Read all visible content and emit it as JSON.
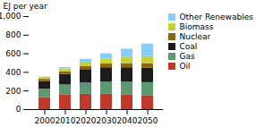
{
  "chart_data": {
    "type": "bar",
    "stacked": true,
    "categories": [
      "2000",
      "2010",
      "2020",
      "2030",
      "2040",
      "2050"
    ],
    "series": [
      {
        "name": "Oil",
        "color": "#c0392b",
        "values": [
          130,
          155,
          165,
          165,
          160,
          150
        ]
      },
      {
        "name": "Gas",
        "color": "#5d9970",
        "values": [
          90,
          110,
          120,
          130,
          135,
          140
        ]
      },
      {
        "name": "Coal",
        "color": "#1c1c1c",
        "values": [
          80,
          115,
          145,
          155,
          155,
          155
        ]
      },
      {
        "name": "Nuclear",
        "color": "#8B6510",
        "values": [
          25,
          28,
          35,
          40,
          45,
          50
        ]
      },
      {
        "name": "Biomass",
        "color": "#c8d435",
        "values": [
          20,
          30,
          45,
          55,
          65,
          75
        ]
      },
      {
        "name": "Other Renewables",
        "color": "#87CEFA",
        "values": [
          5,
          15,
          30,
          55,
          90,
          135
        ]
      }
    ],
    "ylabel": "EJ per year",
    "ylim": [
      0,
      1000
    ],
    "yticks": [
      0,
      200,
      400,
      600,
      800,
      1000
    ],
    "grid": false,
    "legend": "right"
  }
}
